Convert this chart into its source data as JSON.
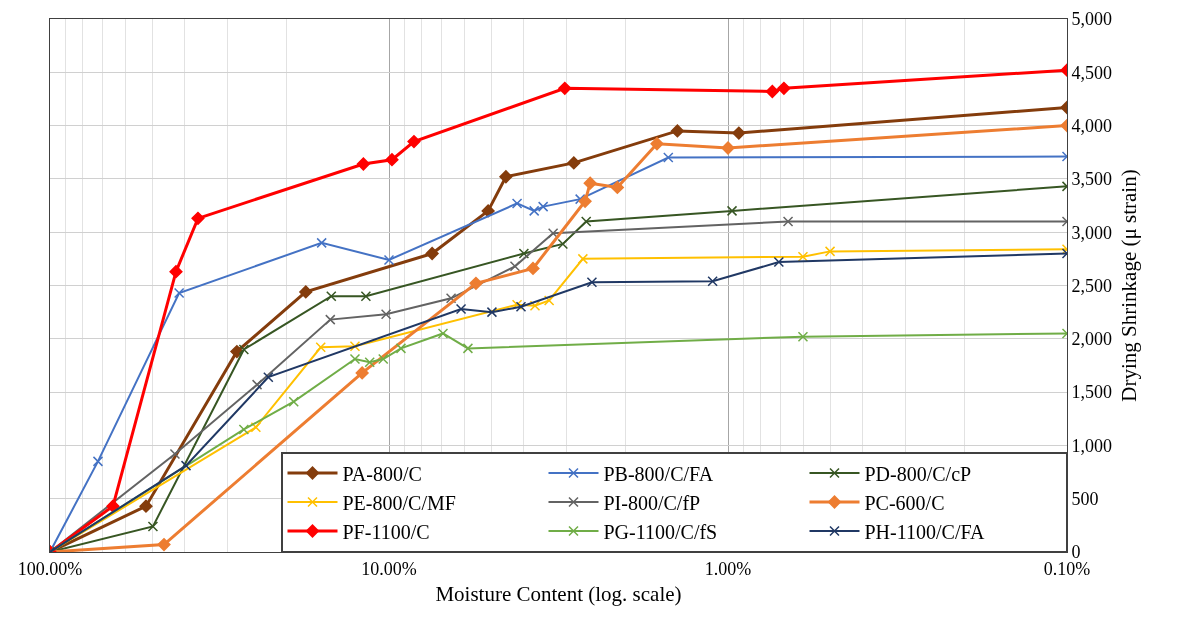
{
  "chart_data": {
    "type": "line",
    "xlabel": "Moisture Content (log. scale)",
    "ylabel": "Drying Shrinkage (μ strain)",
    "log": "x",
    "xlim": [
      100,
      0.1
    ],
    "xticks": [
      {
        "value": 100,
        "label": "100.00%"
      },
      {
        "value": 10,
        "label": "10.00%"
      },
      {
        "value": 1,
        "label": "1.00%"
      },
      {
        "value": 0.1,
        "label": "0.10%"
      }
    ],
    "ylim": [
      0,
      5000
    ],
    "yticks": [
      0,
      500,
      {
        "value": 1000,
        "label": "1,000"
      },
      {
        "value": 1500,
        "label": "1,500"
      },
      {
        "value": 2000,
        "label": "2,000"
      },
      {
        "value": 2500,
        "label": "2,500"
      },
      {
        "value": 3000,
        "label": "3,000"
      },
      {
        "value": 3500,
        "label": "3,500"
      },
      {
        "value": 4000,
        "label": "4,000"
      },
      {
        "value": 4500,
        "label": "4,500"
      },
      {
        "value": 5000,
        "label": "5,000"
      }
    ],
    "grid": true,
    "legend": "bottom right",
    "line_style": "solid",
    "series": [
      {
        "name": "PA-800/C",
        "color": "#843c0c",
        "marker": "diamond",
        "x": [
          100,
          52.1,
          28.1,
          17.6,
          7.46,
          5.1,
          4.52,
          2.85,
          1.41,
          0.929,
          0.1
        ],
        "values": [
          0,
          430,
          1880,
          2440,
          2800,
          3200,
          3520,
          3650,
          3950,
          3930,
          4170
        ]
      },
      {
        "name": "PB-800/C/FA",
        "color": "#4472c4",
        "marker": "cross",
        "x": [
          100,
          72.2,
          41.6,
          15.8,
          10.0,
          4.19,
          3.73,
          3.51,
          2.73,
          1.5,
          0.1
        ],
        "values": [
          0,
          850,
          2430,
          2900,
          2740,
          3270,
          3200,
          3240,
          3310,
          3700,
          3710
        ]
      },
      {
        "name": "PD-800/C/cP",
        "color": "#375623",
        "marker": "cross",
        "x": [
          100,
          49.7,
          26.8,
          14.8,
          11.7,
          4.0,
          3.07,
          2.62,
          0.973,
          0.1
        ],
        "values": [
          0,
          240,
          1900,
          2400,
          2400,
          2800,
          2890,
          3100,
          3200,
          3430
        ]
      },
      {
        "name": "PE-800/C/MF",
        "color": "#ffc000",
        "marker": "cross",
        "x": [
          100,
          24.7,
          15.9,
          12.6,
          4.19,
          3.71,
          3.37,
          2.68,
          0.601,
          0.5,
          0.1
        ],
        "values": [
          0,
          1170,
          1920,
          1930,
          2320,
          2310,
          2360,
          2750,
          2770,
          2820,
          2840
        ]
      },
      {
        "name": "PI-800/C/fP",
        "color": "#636363",
        "marker": "cross",
        "x": [
          100,
          42.8,
          24.5,
          14.9,
          10.2,
          6.56,
          4.25,
          3.28,
          0.665,
          0.1
        ],
        "values": [
          0,
          920,
          1570,
          2180,
          2230,
          2380,
          2680,
          2990,
          3100,
          3100
        ]
      },
      {
        "name": "PC-600/C",
        "color": "#ed7d31",
        "marker": "diamond",
        "x": [
          100,
          46.1,
          12.0,
          5.54,
          3.76,
          2.64,
          2.55,
          2.12,
          1.62,
          1.0,
          0.1
        ],
        "values": [
          0,
          70,
          1680,
          2520,
          2660,
          3290,
          3460,
          3420,
          3830,
          3790,
          4000
        ]
      },
      {
        "name": "PF-1100/C",
        "color": "#ff0000",
        "marker": "diamond",
        "x": [
          100,
          65.2,
          42.5,
          36.6,
          11.9,
          9.8,
          8.44,
          3.03,
          0.74,
          0.684,
          0.1
        ],
        "values": [
          0,
          430,
          2630,
          3130,
          3640,
          3680,
          3850,
          4350,
          4320,
          4350,
          4520
        ]
      },
      {
        "name": "PG-1100/C/fS",
        "color": "#70ad47",
        "marker": "cross",
        "x": [
          100,
          26.8,
          19.1,
          12.6,
          11.4,
          10.4,
          9.22,
          6.93,
          5.85,
          0.601,
          0.1
        ],
        "values": [
          0,
          1150,
          1410,
          1810,
          1780,
          1810,
          1910,
          2050,
          1910,
          2020,
          2050
        ]
      },
      {
        "name": "PH-1100/C/FA",
        "color": "#203864",
        "marker": "cross",
        "x": [
          100,
          39.7,
          22.7,
          6.13,
          4.97,
          4.08,
          2.52,
          1.11,
          0.708,
          0.1
        ],
        "values": [
          0,
          810,
          1640,
          2280,
          2250,
          2300,
          2530,
          2540,
          2720,
          2800
        ]
      }
    ]
  }
}
